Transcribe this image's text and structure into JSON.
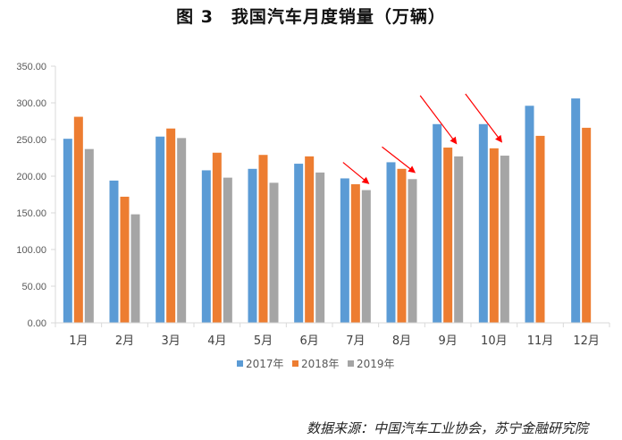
{
  "title": "图 3　我国汽车月度销量（万辆）",
  "source": "数据来源：中国汽车工业协会，苏宁金融研究院",
  "colors": {
    "s2017": "#5B9BD5",
    "s2018": "#ED7D31",
    "s2019": "#A5A5A5",
    "arrow": "#FF0000",
    "axis": "#D9D9D9"
  },
  "chart_data": {
    "type": "bar",
    "categories": [
      "1月",
      "2月",
      "3月",
      "4月",
      "5月",
      "6月",
      "7月",
      "8月",
      "9月",
      "10月",
      "11月",
      "12月"
    ],
    "series": [
      {
        "name": "2017年",
        "values": [
          251,
          194,
          254,
          208,
          210,
          217,
          197,
          219,
          271,
          271,
          296,
          306
        ]
      },
      {
        "name": "2018年",
        "values": [
          281,
          172,
          265,
          232,
          229,
          227,
          189,
          210,
          239,
          238,
          255,
          266
        ]
      },
      {
        "name": "2019年",
        "values": [
          237,
          148,
          252,
          198,
          191,
          205,
          181,
          196,
          227,
          228,
          null,
          null
        ]
      }
    ],
    "ylim": [
      0,
      350
    ],
    "yticks": [
      "0.00",
      "50.00",
      "100.00",
      "150.00",
      "200.00",
      "250.00",
      "300.00",
      "350.00"
    ],
    "legend_position": "bottom",
    "grid": false,
    "annotations": {
      "red_arrows_at": [
        "7月",
        "8月",
        "9月",
        "10月"
      ]
    }
  }
}
